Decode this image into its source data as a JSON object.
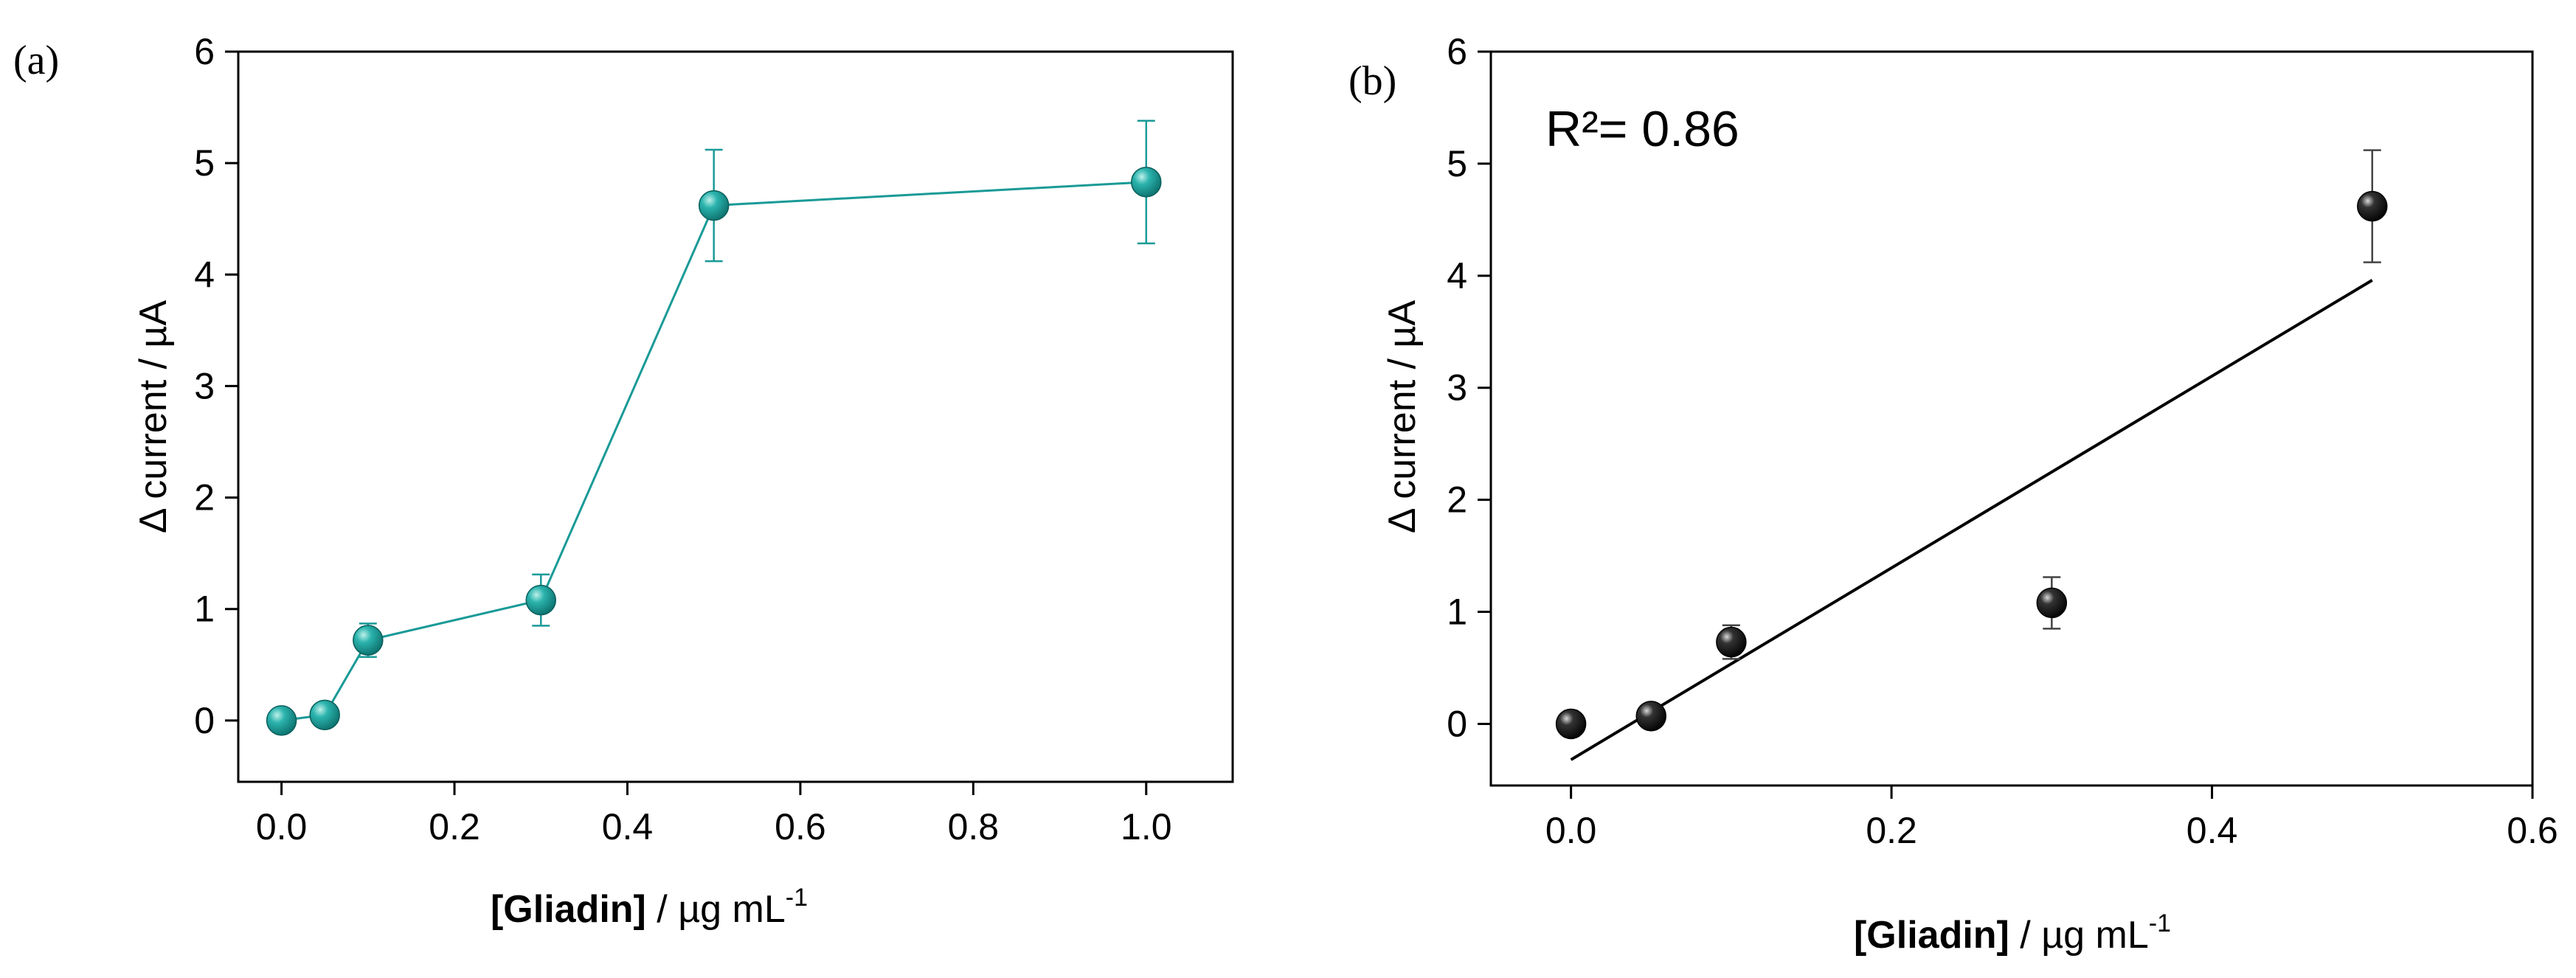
{
  "chart_data": [
    {
      "panel_label": "(a)",
      "type": "line",
      "x": [
        0.0,
        0.05,
        0.1,
        0.3,
        0.5,
        1.0
      ],
      "series": [
        {
          "name": "Δ current",
          "values": [
            0.0,
            0.05,
            0.72,
            1.08,
            4.62,
            4.83
          ],
          "errors": [
            0.0,
            0.05,
            0.15,
            0.23,
            0.5,
            0.55
          ],
          "color": "#1a9a97"
        }
      ],
      "xlabel_prefix": "[Gliadin]",
      "xlabel_unit": " / µg mL",
      "xlabel_sup": "-1",
      "ylabel": "Δ current / µA",
      "xlim": [
        -0.05,
        1.1
      ],
      "ylim": [
        -0.55,
        6
      ],
      "xticks": [
        "0.0",
        "0.2",
        "0.4",
        "0.6",
        "0.8",
        "1.0"
      ],
      "yticks": [
        "0",
        "1",
        "2",
        "3",
        "4",
        "5",
        "6"
      ]
    },
    {
      "panel_label": "(b)",
      "type": "scatter",
      "x": [
        0.0,
        0.05,
        0.1,
        0.3,
        0.5
      ],
      "series": [
        {
          "name": "Δ current",
          "values": [
            0.0,
            0.07,
            0.73,
            1.08,
            4.62
          ],
          "errors": [
            0.0,
            0.05,
            0.15,
            0.23,
            0.5
          ],
          "color": "#111111"
        }
      ],
      "fit": {
        "x": [
          0.0,
          0.5
        ],
        "y": [
          -0.32,
          3.96
        ],
        "r2_text": "R²= 0.86"
      },
      "xlabel_prefix": "[Gliadin]",
      "xlabel_unit": " / µg mL",
      "xlabel_sup": "-1",
      "ylabel": "Δ current / µA",
      "xlim": [
        -0.05,
        0.6
      ],
      "ylim": [
        -0.55,
        6
      ],
      "xticks": [
        "0.0",
        "0.2",
        "0.4",
        "0.6"
      ],
      "yticks": [
        "0",
        "1",
        "2",
        "3",
        "4",
        "5",
        "6"
      ]
    }
  ]
}
